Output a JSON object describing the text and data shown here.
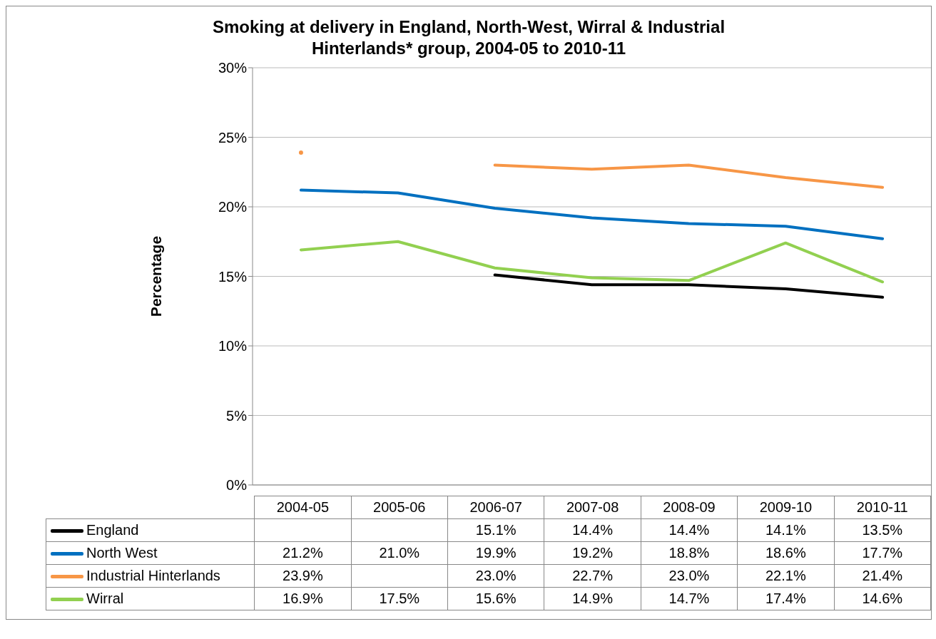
{
  "chart_data": {
    "type": "line",
    "title": "Smoking at delivery in England, North-West, Wirral & Industrial Hinterlands* group, 2004-05 to 2010-11",
    "ylabel": "Percentage",
    "categories": [
      "2004-05",
      "2005-06",
      "2006-07",
      "2007-08",
      "2008-09",
      "2009-10",
      "2010-11"
    ],
    "series": [
      {
        "name": "England",
        "color": "#000000",
        "values": [
          null,
          null,
          15.1,
          14.4,
          14.4,
          14.1,
          13.5
        ],
        "value_labels": [
          null,
          null,
          "15.1%",
          "14.4%",
          "14.4%",
          "14.1%",
          "13.5%"
        ]
      },
      {
        "name": "North West",
        "color": "#0070c0",
        "values": [
          21.2,
          21.0,
          19.9,
          19.2,
          18.8,
          18.6,
          17.7
        ],
        "value_labels": [
          "21.2%",
          "21.0%",
          "19.9%",
          "19.2%",
          "18.8%",
          "18.6%",
          "17.7%"
        ]
      },
      {
        "name": "Industrial Hinterlands",
        "color": "#f79646",
        "values": [
          23.9,
          null,
          23.0,
          22.7,
          23.0,
          22.1,
          21.4
        ],
        "value_labels": [
          "23.9%",
          null,
          "23.0%",
          "22.7%",
          "23.0%",
          "22.1%",
          "21.4%"
        ]
      },
      {
        "name": "Wirral",
        "color": "#92d050",
        "values": [
          16.9,
          17.5,
          15.6,
          14.9,
          14.7,
          17.4,
          14.6
        ],
        "value_labels": [
          "16.9%",
          "17.5%",
          "15.6%",
          "14.9%",
          "14.7%",
          "17.4%",
          "14.6%"
        ]
      }
    ],
    "ylim": [
      0,
      30
    ],
    "yticks": [
      {
        "value": 0,
        "label": "0%"
      },
      {
        "value": 5,
        "label": "5%"
      },
      {
        "value": 10,
        "label": "10%"
      },
      {
        "value": 15,
        "label": "15%"
      },
      {
        "value": 20,
        "label": "20%"
      },
      {
        "value": 25,
        "label": "25%"
      },
      {
        "value": 30,
        "label": "30%"
      }
    ],
    "grid": "y",
    "legend": "bottom",
    "marker": "none",
    "line_style": "solid"
  }
}
